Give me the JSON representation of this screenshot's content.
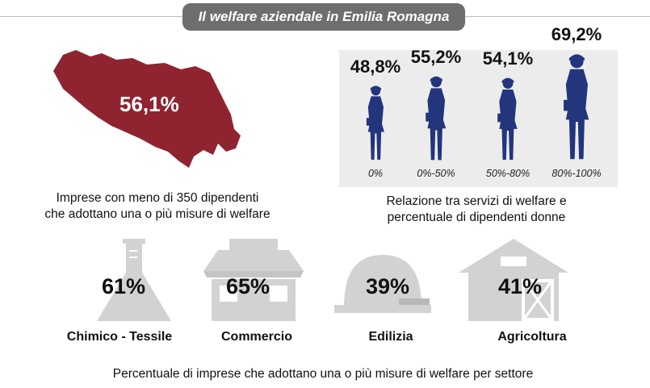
{
  "title": "Il welfare aziendale in Emilia Romagna",
  "region": {
    "value_label": "56,1%",
    "caption_line1": "Imprese con meno di 350 dipendenti",
    "caption_line2": "che adottano una o più misure di welfare",
    "fill_color": "#8f2430"
  },
  "women": {
    "caption_line1": "Relazione tra servizi di welfare e",
    "caption_line2": "percentuale di dipendenti donne",
    "figure_color": "#23357c"
  },
  "sectors": {
    "caption": "Percentuale di imprese che adottano una o più misure di welfare per settore",
    "icon_color": "#d2d2d2"
  },
  "chart_data": [
    {
      "type": "bar",
      "categories": [
        "0%",
        "0%-50%",
        "50%-80%",
        "80%-100%"
      ],
      "values": [
        48.8,
        55.2,
        54.1,
        69.2
      ],
      "value_labels": [
        "48,8%",
        "55,2%",
        "54,1%",
        "69,2%"
      ],
      "title": "",
      "xlabel": "",
      "ylabel": ""
    },
    {
      "type": "bar",
      "categories": [
        "Chimico - Tessile",
        "Commercio",
        "Edilizia",
        "Agricoltura"
      ],
      "values": [
        61,
        65,
        39,
        41
      ],
      "value_labels": [
        "61%",
        "65%",
        "39%",
        "41%"
      ],
      "icons": [
        "flask-icon",
        "shop-icon",
        "hard-hat-icon",
        "barn-icon"
      ],
      "title": "",
      "xlabel": "",
      "ylabel": ""
    }
  ]
}
